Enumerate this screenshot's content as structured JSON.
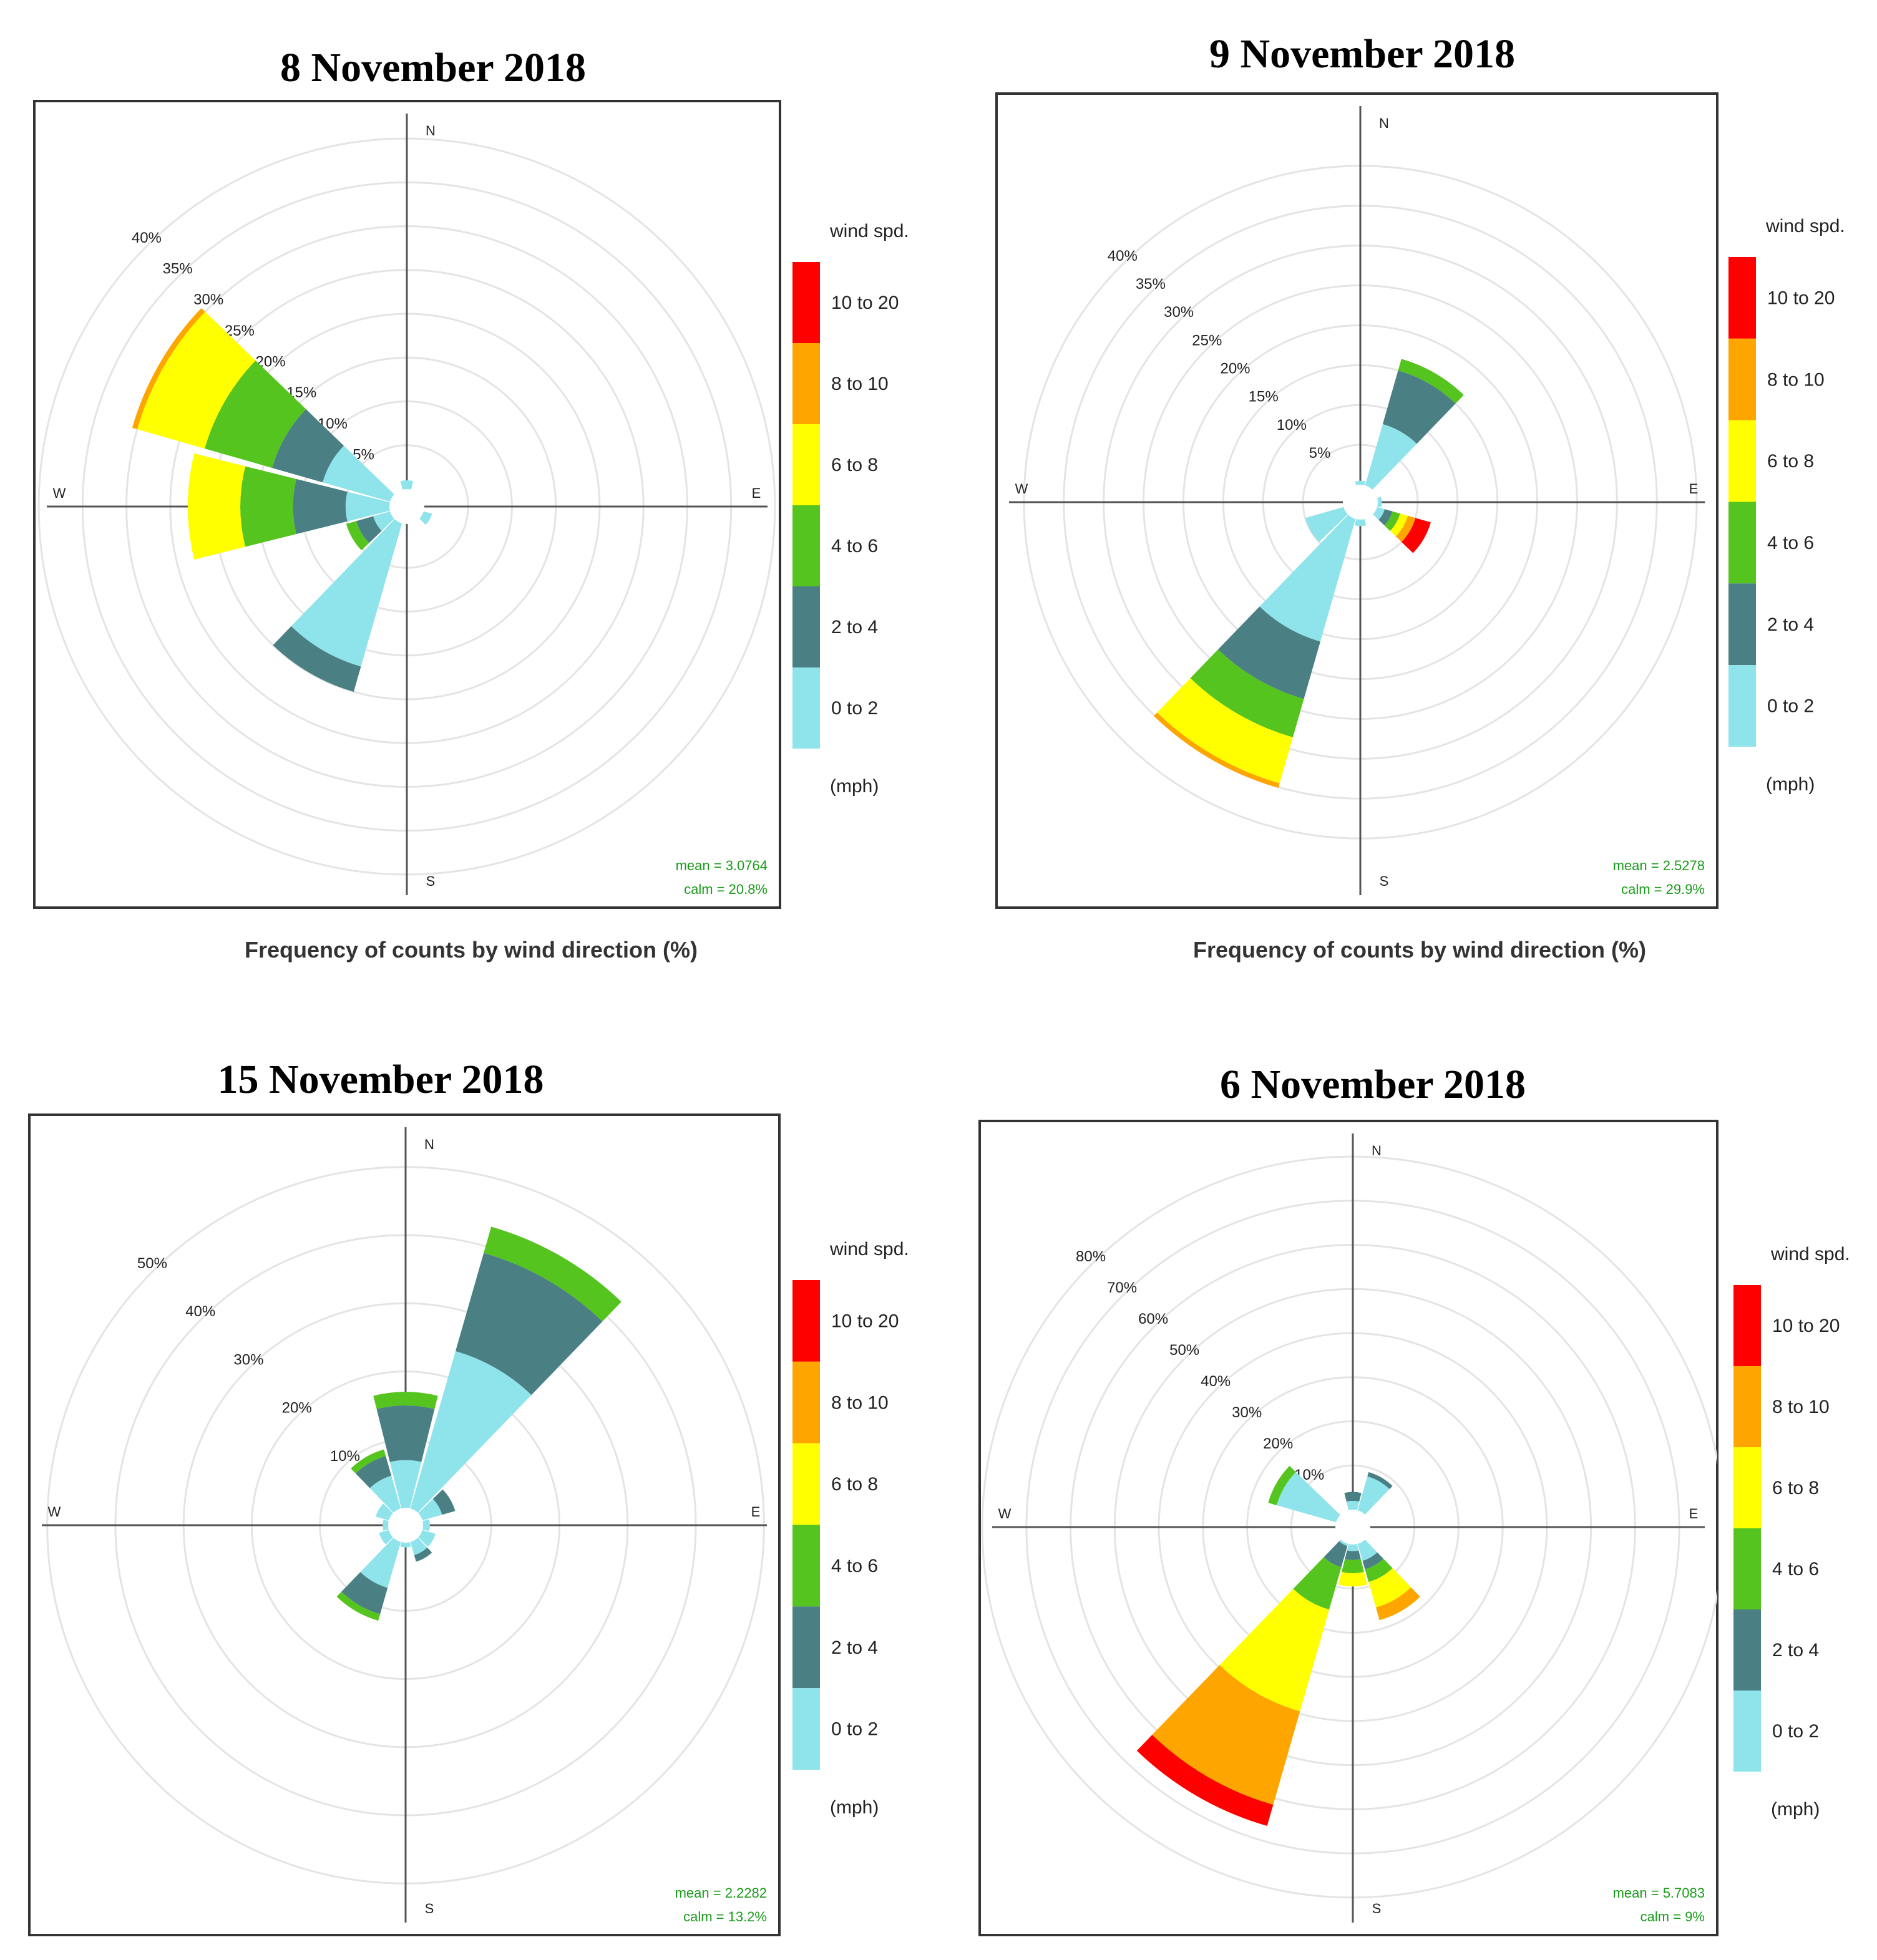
{
  "chart_data": [
    {
      "type": "windrose",
      "title": "8 November 2018",
      "caption": "Frequency of counts by wind direction (%)",
      "ticks": [
        "5%",
        "10%",
        "15%",
        "20%",
        "25%",
        "30%",
        "35%",
        "40%"
      ],
      "tick_values": [
        5,
        10,
        15,
        20,
        25,
        30,
        35,
        40
      ],
      "rmax": 42,
      "cardinals": {
        "N": "N",
        "E": "E",
        "S": "S",
        "W": "W"
      },
      "legend_title": "wind spd.",
      "legend_units": "(mph)",
      "mean": "mean = 3.0764",
      "calm": "calm = 20.8%",
      "sectors": [
        {
          "dir": 0,
          "values": [
            1
          ]
        },
        {
          "dir": 300,
          "values": [
            8,
            6,
            8,
            8,
            0.6
          ]
        },
        {
          "dir": 270,
          "values": [
            5,
            6,
            6,
            6
          ]
        },
        {
          "dir": 240,
          "values": [
            2,
            2,
            1.2
          ]
        },
        {
          "dir": 210,
          "values": [
            17,
            3
          ]
        },
        {
          "dir": 120,
          "values": [
            1
          ]
        }
      ]
    },
    {
      "type": "windrose",
      "title": "9 November 2018",
      "caption": "Frequency of counts by wind direction (%)",
      "ticks": [
        "5%",
        "10%",
        "15%",
        "20%",
        "25%",
        "30%",
        "35%",
        "40%"
      ],
      "tick_values": [
        5,
        10,
        15,
        20,
        25,
        30,
        35,
        40
      ],
      "rmax": 45,
      "cardinals": {
        "N": "N",
        "E": "E",
        "S": "S",
        "W": "W"
      },
      "legend_title": "wind spd.",
      "legend_units": "(mph)",
      "mean": "mean = 2.5278",
      "calm": "calm = 29.9%",
      "sectors": [
        {
          "dir": 30,
          "values": [
            8,
            7,
            1.5
          ]
        },
        {
          "dir": 0,
          "values": [
            0.5
          ]
        },
        {
          "dir": 90,
          "values": [
            0.5
          ]
        },
        {
          "dir": 120,
          "values": [
            1,
            1,
            1,
            1,
            1,
            2
          ]
        },
        {
          "dir": 180,
          "values": [
            0.8
          ]
        },
        {
          "dir": 240,
          "values": [
            5
          ]
        },
        {
          "dir": 210,
          "values": [
            16,
            7.5,
            5,
            6,
            0.6
          ]
        }
      ]
    },
    {
      "type": "windrose",
      "title": "15 November 2018",
      "caption": "",
      "ticks": [
        "10%",
        "20%",
        "30%",
        "40%",
        "50%"
      ],
      "tick_values": [
        10,
        20,
        30,
        40,
        50
      ],
      "rmax": 54,
      "cardinals": {
        "N": "N",
        "E": "E",
        "S": "S",
        "W": "W"
      },
      "legend_title": "wind spd.",
      "legend_units": "(mph)",
      "mean": "mean = 2.2282",
      "calm": "calm = 13.2%",
      "sectors": [
        {
          "dir": 30,
          "values": [
            24,
            15,
            4
          ]
        },
        {
          "dir": 0,
          "values": [
            7,
            8,
            2
          ]
        },
        {
          "dir": 330,
          "values": [
            5,
            3,
            1
          ]
        },
        {
          "dir": 300,
          "values": [
            2
          ]
        },
        {
          "dir": 270,
          "values": [
            0.8
          ]
        },
        {
          "dir": 240,
          "values": [
            1.5
          ]
        },
        {
          "dir": 210,
          "values": [
            7,
            4,
            1
          ]
        },
        {
          "dir": 180,
          "values": [
            0.7
          ]
        },
        {
          "dir": 150,
          "values": [
            2,
            1
          ]
        },
        {
          "dir": 120,
          "values": [
            2
          ]
        },
        {
          "dir": 90,
          "values": [
            1
          ]
        },
        {
          "dir": 60,
          "values": [
            3,
            2
          ]
        }
      ]
    },
    {
      "type": "windrose",
      "title": "6 November 2018",
      "caption": "",
      "ticks": [
        "10%",
        "20%",
        "30%",
        "40%",
        "50%",
        "60%",
        "70%",
        "80%"
      ],
      "tick_values": [
        10,
        20,
        30,
        40,
        50,
        60,
        70,
        80
      ],
      "rmax": 82,
      "cardinals": {
        "N": "N",
        "E": "E",
        "S": "S",
        "W": "W"
      },
      "legend_title": "wind spd.",
      "legend_units": "(mph)",
      "mean": "mean = 5.7083",
      "calm": "calm = 9%",
      "sectors": [
        {
          "dir": 30,
          "values": [
            8,
            1
          ]
        },
        {
          "dir": 0,
          "values": [
            2,
            2
          ]
        },
        {
          "dir": 300,
          "values": [
            14,
            0,
            2
          ]
        },
        {
          "dir": 210,
          "values": [
            0.5,
            5,
            10,
            24,
            22,
            5
          ]
        },
        {
          "dir": 180,
          "values": [
            1.5,
            2,
            3,
            3
          ]
        },
        {
          "dir": 150,
          "values": [
            4,
            2,
            3,
            6,
            3
          ]
        }
      ]
    }
  ],
  "legend": {
    "bins": [
      "0 to 2",
      "2 to 4",
      "4 to 6",
      "6 to 8",
      "8 to 10",
      "10 to 20"
    ],
    "colors": [
      "#8fe3ea",
      "#4a7f84",
      "#55c41e",
      "#ffff00",
      "#ffa500",
      "#ff0000"
    ]
  }
}
